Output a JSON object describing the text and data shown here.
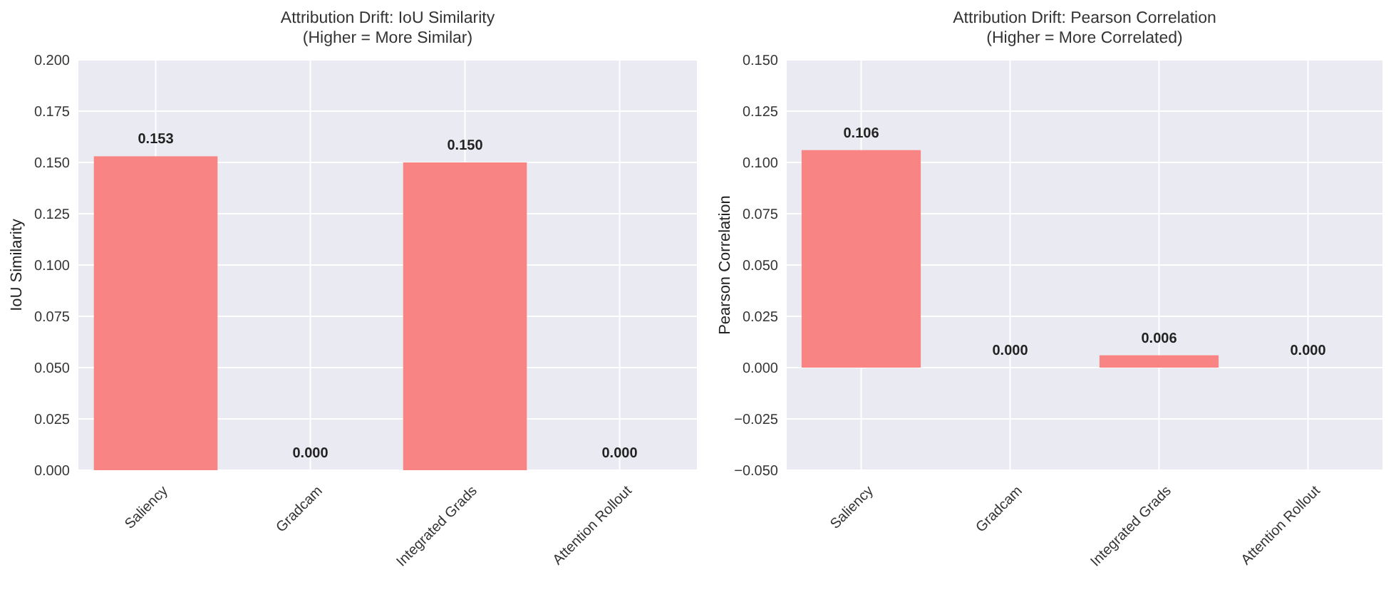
{
  "chart_data": [
    {
      "type": "bar",
      "title": "Attribution Drift: IoU Similarity",
      "subtitle": "(Higher = More Similar)",
      "ylabel": "IoU Similarity",
      "categories": [
        "Saliency",
        "Gradcam",
        "Integrated Grads",
        "Attention Rollout"
      ],
      "values": [
        0.153,
        0,
        0.15,
        0
      ],
      "value_labels": [
        "0.153",
        "0.000",
        "0.150",
        "0.000"
      ],
      "color": "#f98484",
      "ylim": [
        0,
        0.2
      ],
      "yticks": [
        {
          "value": 0,
          "label": "0.000"
        },
        {
          "value": 0.025,
          "label": "0.025"
        },
        {
          "value": 0.05,
          "label": "0.050"
        },
        {
          "value": 0.075,
          "label": "0.075"
        },
        {
          "value": 0.1,
          "label": "0.100"
        },
        {
          "value": 0.125,
          "label": "0.125"
        },
        {
          "value": 0.15,
          "label": "0.150"
        },
        {
          "value": 0.175,
          "label": "0.175"
        },
        {
          "value": 0.2,
          "label": "0.200"
        }
      ],
      "grid": true
    },
    {
      "type": "bar",
      "title": "Attribution Drift: Pearson Correlation",
      "subtitle": "(Higher = More Correlated)",
      "ylabel": "Pearson Correlation",
      "categories": [
        "Saliency",
        "Gradcam",
        "Integrated Grads",
        "Attention Rollout"
      ],
      "values": [
        0.106,
        0,
        0.006,
        0
      ],
      "value_labels": [
        "0.106",
        "0.000",
        "0.006",
        "0.000"
      ],
      "color": "#f98484",
      "ylim": [
        -0.05,
        0.15
      ],
      "yticks": [
        {
          "value": -0.05,
          "label": "−0.050"
        },
        {
          "value": -0.025,
          "label": "−0.025"
        },
        {
          "value": 0,
          "label": "0.000"
        },
        {
          "value": 0.025,
          "label": "0.025"
        },
        {
          "value": 0.05,
          "label": "0.050"
        },
        {
          "value": 0.075,
          "label": "0.075"
        },
        {
          "value": 0.1,
          "label": "0.100"
        },
        {
          "value": 0.125,
          "label": "0.125"
        },
        {
          "value": 0.15,
          "label": "0.150"
        }
      ],
      "grid": true
    }
  ]
}
